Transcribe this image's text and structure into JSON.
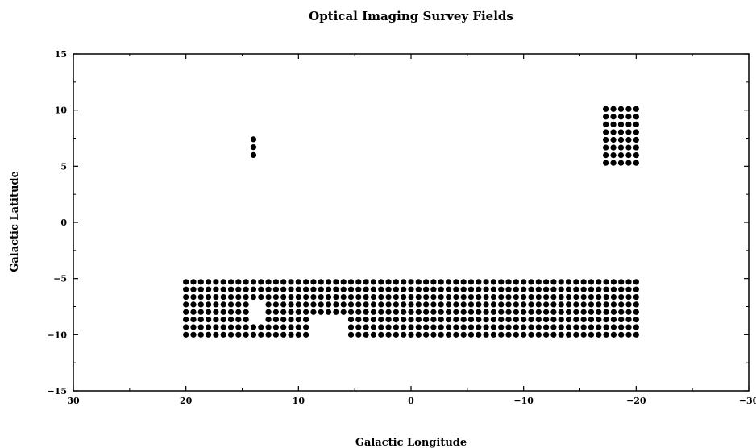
{
  "chart_data": {
    "type": "scatter",
    "title": "Optical Imaging Survey Fields",
    "xlabel": "Galactic Longitude",
    "ylabel": "Galactic Latitude",
    "xlim": [
      30,
      -30
    ],
    "ylim": [
      -15,
      15
    ],
    "x_ticks": [
      30,
      20,
      10,
      0,
      -10,
      -20,
      -30
    ],
    "y_ticks": [
      15,
      10,
      5,
      0,
      -5,
      -10,
      -15
    ],
    "x_tick_labels": [
      "30",
      "20",
      "10",
      "0",
      "−10",
      "−20",
      "−30"
    ],
    "y_tick_labels": [
      "15",
      "10",
      "5",
      "0",
      "−5",
      "−10",
      "−15"
    ],
    "grid": false,
    "marker": "filled-circle",
    "marker_color": "#000000",
    "spacing_deg": 0.67,
    "regions": [
      {
        "region": "main-strip",
        "l_range": [
          20,
          -20
        ],
        "b_range": [
          -5.3,
          -10.0
        ],
        "rows": 8,
        "gaps": [
          {
            "l_range": [
              14.0,
              12.7
            ],
            "b_range": [
              -7.3,
              -9.3
            ]
          },
          {
            "l_range": [
              9.3,
              5.9
            ],
            "b_range": [
              -8.0,
              -10.0
            ]
          }
        ]
      },
      {
        "region": "isolated-column",
        "l": 14,
        "b": [
          6.0,
          6.7,
          7.4
        ]
      },
      {
        "region": "upper-right-block",
        "l_range": [
          -17.3,
          -20
        ],
        "b_range": [
          10.1,
          5.3
        ]
      }
    ]
  }
}
